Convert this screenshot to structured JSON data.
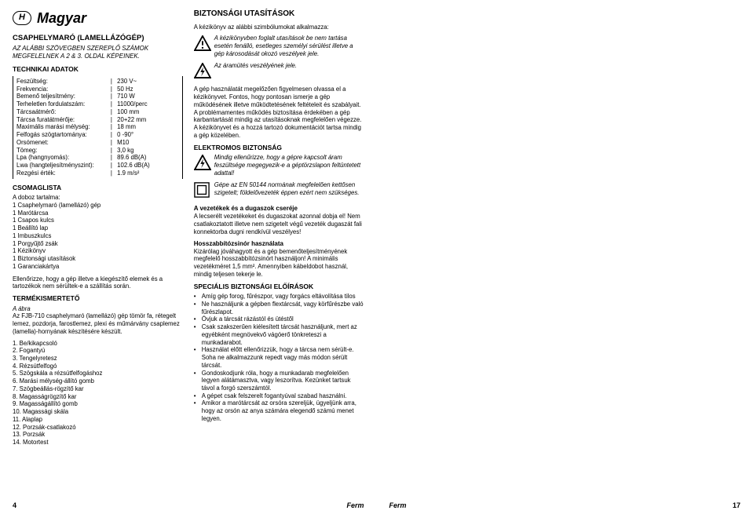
{
  "lang": {
    "code": "H",
    "name": "Magyar"
  },
  "title": "CSAPHELYMARÓ (LAMELLÁZÓGÉP)",
  "subtitle": "AZ ALÁBBI SZÖVEGBEN SZEREPLŐ SZÁMOK MEGFELELNEK A 2 & 3. OLDAL KÉPEINEK.",
  "tech_head": "TECHNIKAI ADATOK",
  "specs": [
    {
      "l": "Feszültség:",
      "v": "230 V~"
    },
    {
      "l": "Frekvencia:",
      "v": "50 Hz"
    },
    {
      "l": "Bemenő teljesítmény:",
      "v": "710 W"
    },
    {
      "l": "Terheletlen fordulatszám:",
      "v": "11000/perc"
    },
    {
      "l": "Tárcsaátmérő:",
      "v": "100 mm"
    },
    {
      "l": "Tárcsa furatátmérője:",
      "v": "20+22 mm"
    },
    {
      "l": "Maximális marási mélység:",
      "v": "18 mm"
    },
    {
      "l": "Felfogás szögtartománya:",
      "v": "0 -90°"
    },
    {
      "l": "Orsómenet:",
      "v": "M10"
    },
    {
      "l": "Tömeg:",
      "v": "3,0 kg"
    },
    {
      "l": "Lpa (hangnyomás):",
      "v": "89.6 dB(A)"
    },
    {
      "l": "Lwa (hangteljesítményszint):",
      "v": "102.6 dB(A)"
    },
    {
      "l": "Rezgési érték:",
      "v": "1.9 m/s²"
    }
  ],
  "pkg_head": "CSOMAGLISTA",
  "pkg_intro": "A doboz tartalma:",
  "pkg": [
    "Csaphelymaró (lamellázó) gép",
    "Marótárcsa",
    "Csapos kulcs",
    "Beállító lap",
    "Imbuszkulcs",
    "Porgyűjtő zsák",
    "Kézikönyv",
    "Biztonsági utasítások",
    "Garanciakártya"
  ],
  "pkg_note": "Ellenőrizze, hogy a gép illetve a kiegészítő elemek és a tartozékok nem sérültek-e a szállítás során.",
  "prod_head": "TERMÉKISMERTETŐ",
  "fig_label": "A ábra",
  "prod_text": "Az FJB-710 csaphelymaró (lamellázó) gép tömör fa, rétegelt lemez, pozdorja, farostlemez, plexi és műmárvány csaplemez (lamella)-hornyának készítésére készült.",
  "parts": [
    "Be/kikapcsoló",
    "Fogantyú",
    "Tengelyretesz",
    "Rézsútfelfogó",
    "Szögskála a rézsútfelfogáshoz",
    "Marási mélység-állító gomb",
    "Szögbeállás-rögzítő kar",
    "Magasságrögzítő kar",
    "Magasságállító gomb",
    "Magassági skála",
    "Alaplap",
    "Porzsák-csatlakozó",
    "Porzsák",
    "Motortest"
  ],
  "safety_head": "BIZTONSÁGI UTASÍTÁSOK",
  "safety_intro": "A kézikönyv az alábbi szimbólumokat alkalmazza:",
  "warn1": "A kézikönyvben foglalt utasítások be nem tartása esetén fenálló, esetleges személyi sérülést illetve a gép károsodását okozó veszélyek jele.",
  "warn2": "Az áramütés veszélyének jele.",
  "use_text": "A gép használatát megelőzően figyelmesen olvassa el a kézikönyvet. Fontos, hogy pontosan ismerje a gép működésének illetve működtetésének feltételeit és szabályait. A problémamentes működés biztosítása érdekében a gép karbantartását mindig az utasításoknak megfelelően végezze. A kézikönyvet és a hozzá tartozó dokumentációt tartsa mindig a gép közelében.",
  "elec_head": "ELEKTROMOS BIZTONSÁG",
  "elec_warn1": "Mindig ellenűrizze, hogy a gépre kapcsolt áram feszültsége megegyezik-e a géptörzslapon feltüntetett adattal!",
  "elec_warn2": "Gépe az EN 50144 normának megfelelően kettősen szigetelt; földelővezeték éppen ezért nem szükséges.",
  "cable_head": "A vezetékek és a dugaszok cseréje",
  "cable_text": "A lecserélt vezetékeket és dugaszokat azonnal dobja el! Nem csatlakoztatott illetve nem szigetelt végű vezeték dugaszát fali konnektorba dugni rendkívül veszélyes!",
  "ext_head": "Hosszabbítózsinór használata",
  "ext_text": "Kizárólag jóváhagyott és a gép bemenőteljesítményének megfelelő hosszabbítózsinórt használjon! A minimális vezetékméret 1,5 mm². Amennyiben kábeldobot használ, mindig teljesen tekerje le.",
  "spec_head": "SPECIÁLIS BIZTONSÁGI ELŐÍRÁSOK",
  "spec_bullets": [
    "Amíg gép forog, fűrészpor, vagy forgács eltávolítása tilos",
    "Ne használjunk a gépben flextárcsát, vagy körfűrészbe való fűrészlapot.",
    "Óvjuk a tárcsát rázástól és ütéstől",
    "Csak szakszerűen kiélesített tárcsát használjunk, mert az egyébként megnövekvő vágóerő tönkreteszi a munkadarabot.",
    "Használat előtt ellenőrizzük, hogy a tárcsa nem sérült-e. Soha ne alkalmazzunk repedt vagy más módon sérült tárcsát.",
    "Gondoskodjunk róla, hogy a munkadarab megfelelően legyen alátámasztva, vagy leszorítva. Kezünket tartsuk távol a forgó szerszámtól.",
    "A gépet csak felszerelt fogantyúval szabad használni.",
    "Amikor a marótárcsát az orsóra szereljük, ügyeljünk arra, hogy az orsón az anya számára elegendő számú menet legyen."
  ],
  "footer": {
    "left_num": "4",
    "ferm": "Ferm",
    "right_num": "17"
  }
}
